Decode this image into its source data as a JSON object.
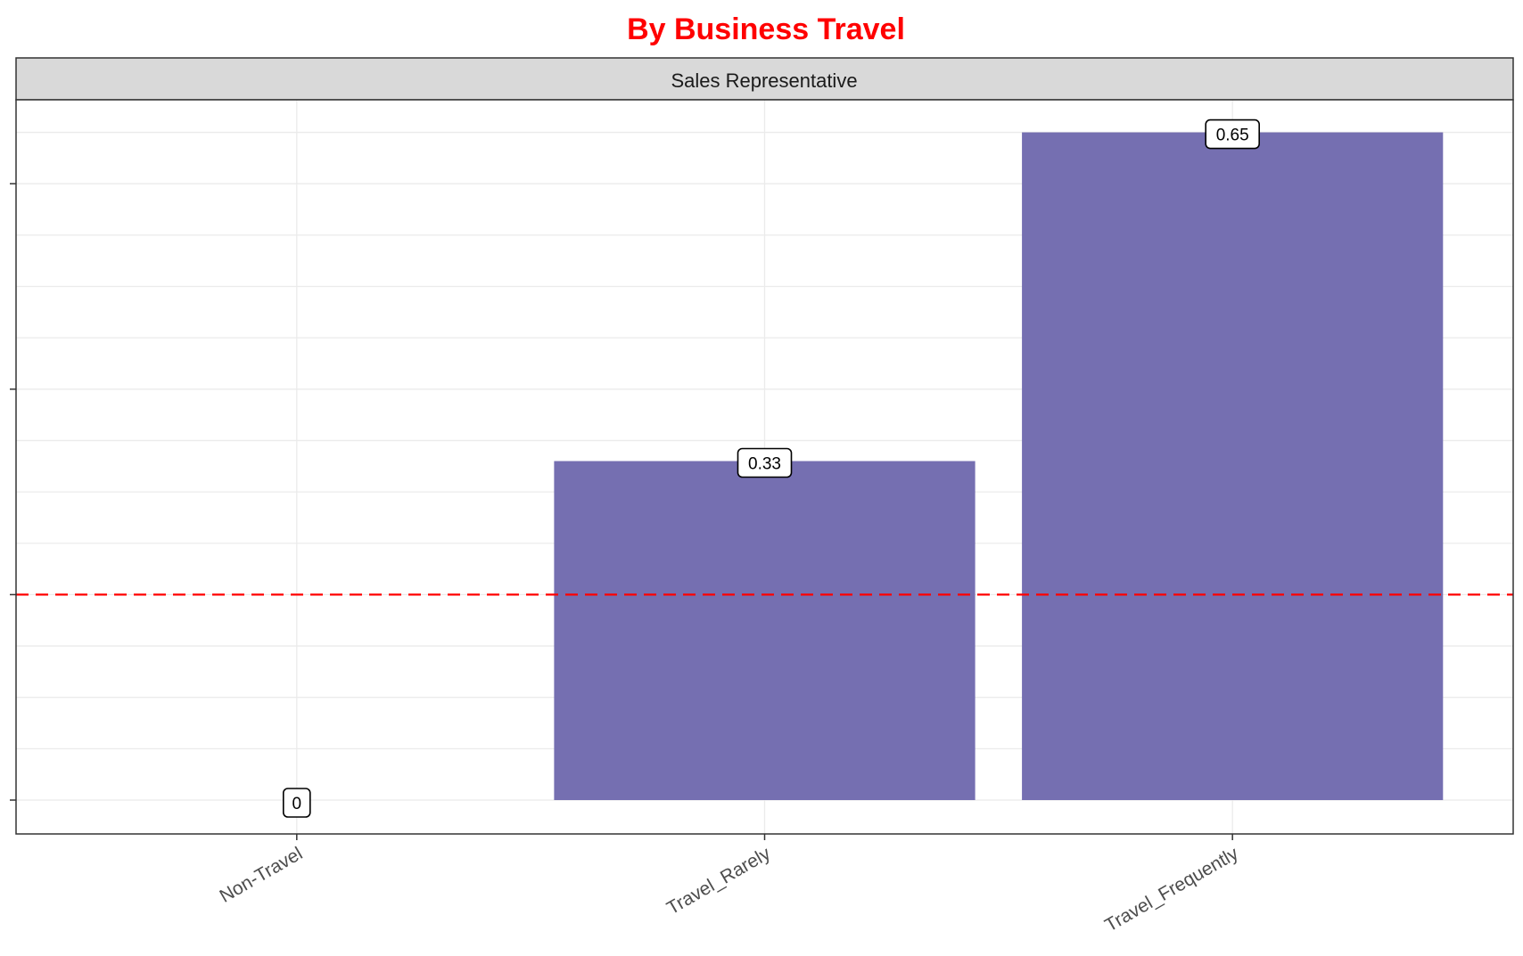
{
  "chart_data": {
    "type": "bar",
    "title": "By Business Travel",
    "facet_label": "Sales Representative",
    "categories": [
      "Non-Travel",
      "Travel_Rarely",
      "Travel_Frequently"
    ],
    "values": [
      0,
      0.33,
      0.65
    ],
    "data_labels": [
      "0",
      "0.33",
      "0.65"
    ],
    "reference_line": 0.2,
    "ylim": [
      0,
      0.66
    ],
    "xlabel": "",
    "ylabel": "",
    "grid": true,
    "legend": "none"
  },
  "colors": {
    "title": "#ff0000",
    "bar": "#756fb1",
    "reference_line": "#ff0000",
    "strip_fill": "#d9d9d9",
    "panel_border": "#333333",
    "grid": "#ebebeb"
  }
}
